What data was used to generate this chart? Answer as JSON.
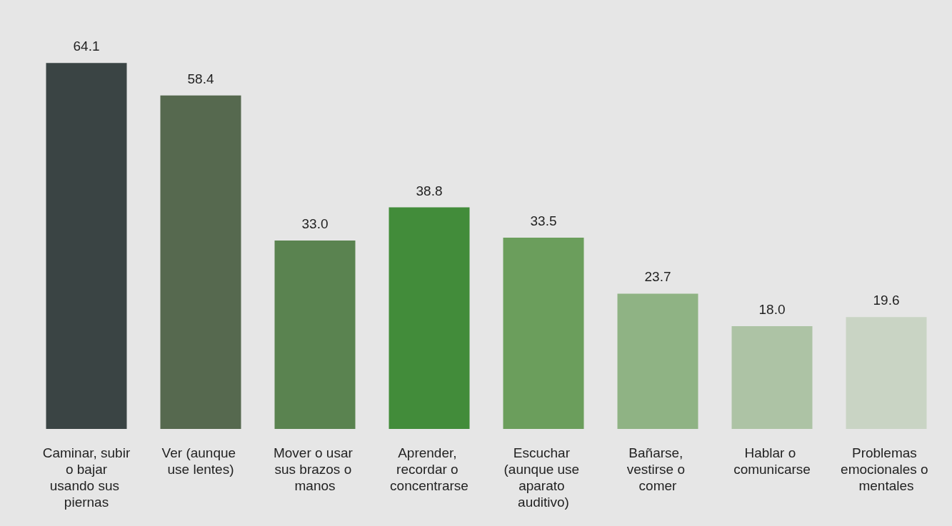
{
  "chart_data": {
    "type": "bar",
    "categories": [
      "Caminar, subir o bajar usando sus piernas",
      "Ver (aunque use lentes)",
      "Mover o usar sus brazos o manos",
      "Aprender, recordar o concentrarse",
      "Escuchar (aunque use aparato auditivo)",
      "Bañarse, vestirse o comer",
      "Hablar o comunicarse",
      "Problemas emocionales o mentales"
    ],
    "values": [
      64.1,
      58.4,
      33.0,
      38.8,
      33.5,
      23.7,
      18.0,
      19.6
    ],
    "value_labels": [
      "64.1",
      "58.4",
      "33.0",
      "38.8",
      "33.5",
      "23.7",
      "18.0",
      "19.6"
    ],
    "colors": [
      "#3a4444",
      "#56694f",
      "#5a8350",
      "#428c3a",
      "#6b9e5c",
      "#8fb384",
      "#adc3a5",
      "#c9d4c4"
    ]
  }
}
